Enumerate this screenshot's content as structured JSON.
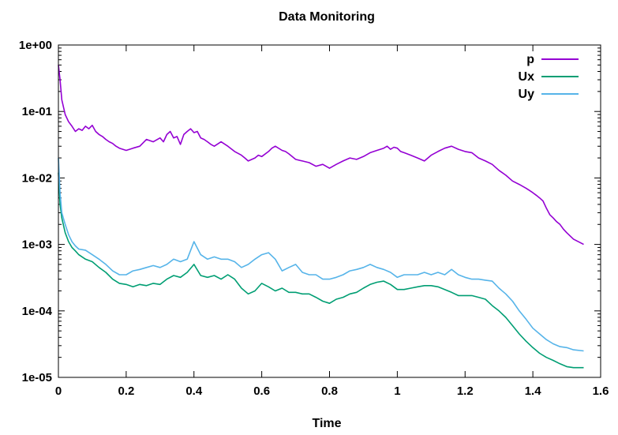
{
  "chart_data": {
    "type": "line",
    "title": "Data Monitoring",
    "xlabel": "Time",
    "ylabel": "",
    "yscale": "log",
    "xlim": [
      0,
      1.6
    ],
    "ylim": [
      1e-05,
      1
    ],
    "x_ticks": [
      0,
      0.2,
      0.4,
      0.6,
      0.8,
      1,
      1.2,
      1.4,
      1.6
    ],
    "x_tick_labels": [
      "0",
      "0.2",
      "0.4",
      "0.6",
      "0.8",
      "1",
      "1.2",
      "1.4",
      "1.6"
    ],
    "y_ticks": [
      1e-05,
      0.0001,
      0.001,
      0.01,
      0.1,
      1
    ],
    "y_tick_labels": [
      "1e-05",
      "1e-04",
      "1e-03",
      "1e-02",
      "1e-01",
      "1e+00"
    ],
    "legend_position": "top-right",
    "series": [
      {
        "name": "p",
        "color": "#9400d3",
        "x": [
          0,
          0.005,
          0.01,
          0.02,
          0.03,
          0.04,
          0.05,
          0.06,
          0.07,
          0.08,
          0.09,
          0.1,
          0.11,
          0.12,
          0.13,
          0.14,
          0.15,
          0.16,
          0.17,
          0.18,
          0.19,
          0.2,
          0.22,
          0.24,
          0.26,
          0.28,
          0.3,
          0.31,
          0.32,
          0.33,
          0.34,
          0.35,
          0.36,
          0.37,
          0.38,
          0.39,
          0.4,
          0.41,
          0.42,
          0.43,
          0.44,
          0.45,
          0.46,
          0.48,
          0.5,
          0.52,
          0.54,
          0.55,
          0.56,
          0.58,
          0.59,
          0.6,
          0.62,
          0.63,
          0.64,
          0.66,
          0.67,
          0.68,
          0.7,
          0.72,
          0.74,
          0.76,
          0.78,
          0.8,
          0.82,
          0.84,
          0.86,
          0.88,
          0.9,
          0.92,
          0.94,
          0.96,
          0.97,
          0.98,
          0.99,
          1.0,
          1.01,
          1.02,
          1.04,
          1.06,
          1.08,
          1.1,
          1.12,
          1.14,
          1.16,
          1.18,
          1.2,
          1.22,
          1.24,
          1.26,
          1.28,
          1.3,
          1.32,
          1.34,
          1.36,
          1.38,
          1.39,
          1.4,
          1.41,
          1.42,
          1.43,
          1.44,
          1.45,
          1.46,
          1.47,
          1.48,
          1.49,
          1.5,
          1.52,
          1.55
        ],
        "values": [
          0.5,
          0.3,
          0.15,
          0.09,
          0.07,
          0.06,
          0.05,
          0.055,
          0.052,
          0.06,
          0.055,
          0.062,
          0.05,
          0.045,
          0.042,
          0.038,
          0.035,
          0.033,
          0.03,
          0.028,
          0.027,
          0.026,
          0.028,
          0.03,
          0.038,
          0.035,
          0.04,
          0.035,
          0.045,
          0.05,
          0.04,
          0.042,
          0.032,
          0.045,
          0.05,
          0.055,
          0.048,
          0.05,
          0.04,
          0.038,
          0.035,
          0.032,
          0.03,
          0.035,
          0.03,
          0.025,
          0.022,
          0.02,
          0.018,
          0.02,
          0.022,
          0.021,
          0.025,
          0.028,
          0.03,
          0.026,
          0.025,
          0.023,
          0.019,
          0.018,
          0.017,
          0.015,
          0.016,
          0.014,
          0.016,
          0.018,
          0.02,
          0.019,
          0.021,
          0.024,
          0.026,
          0.028,
          0.03,
          0.027,
          0.029,
          0.028,
          0.025,
          0.024,
          0.022,
          0.02,
          0.018,
          0.022,
          0.025,
          0.028,
          0.03,
          0.027,
          0.025,
          0.024,
          0.02,
          0.018,
          0.016,
          0.013,
          0.011,
          0.009,
          0.008,
          0.007,
          0.0065,
          0.006,
          0.0055,
          0.005,
          0.0045,
          0.0035,
          0.0028,
          0.0025,
          0.0022,
          0.002,
          0.0017,
          0.0015,
          0.0012,
          0.001
        ]
      },
      {
        "name": "Ux",
        "color": "#009e73",
        "x": [
          0,
          0.005,
          0.01,
          0.02,
          0.03,
          0.04,
          0.05,
          0.06,
          0.08,
          0.1,
          0.12,
          0.14,
          0.16,
          0.18,
          0.2,
          0.22,
          0.24,
          0.26,
          0.28,
          0.3,
          0.32,
          0.34,
          0.36,
          0.38,
          0.4,
          0.42,
          0.44,
          0.46,
          0.48,
          0.5,
          0.52,
          0.54,
          0.56,
          0.58,
          0.6,
          0.62,
          0.64,
          0.66,
          0.68,
          0.7,
          0.72,
          0.74,
          0.76,
          0.78,
          0.8,
          0.82,
          0.84,
          0.86,
          0.88,
          0.9,
          0.92,
          0.94,
          0.96,
          0.98,
          1.0,
          1.02,
          1.04,
          1.06,
          1.08,
          1.1,
          1.12,
          1.14,
          1.16,
          1.18,
          1.2,
          1.22,
          1.24,
          1.26,
          1.28,
          1.3,
          1.32,
          1.34,
          1.36,
          1.38,
          1.4,
          1.42,
          1.44,
          1.46,
          1.48,
          1.5,
          1.52,
          1.55
        ],
        "values": [
          0.012,
          0.004,
          0.0025,
          0.0015,
          0.0011,
          0.0009,
          0.0008,
          0.0007,
          0.0006,
          0.00055,
          0.00045,
          0.00038,
          0.0003,
          0.00026,
          0.00025,
          0.00023,
          0.00025,
          0.00024,
          0.00026,
          0.00025,
          0.0003,
          0.00034,
          0.00032,
          0.00038,
          0.0005,
          0.00034,
          0.00032,
          0.00034,
          0.0003,
          0.00035,
          0.0003,
          0.00022,
          0.00018,
          0.0002,
          0.00026,
          0.00023,
          0.0002,
          0.00022,
          0.00019,
          0.00019,
          0.00018,
          0.00018,
          0.00016,
          0.00014,
          0.00013,
          0.00015,
          0.00016,
          0.00018,
          0.00019,
          0.00022,
          0.00025,
          0.00027,
          0.00028,
          0.00025,
          0.00021,
          0.00021,
          0.00022,
          0.00023,
          0.00024,
          0.00024,
          0.00023,
          0.00021,
          0.00019,
          0.00017,
          0.00017,
          0.00017,
          0.00016,
          0.00015,
          0.00012,
          0.0001,
          8e-05,
          6e-05,
          4.5e-05,
          3.5e-05,
          2.8e-05,
          2.3e-05,
          2e-05,
          1.8e-05,
          1.6e-05,
          1.45e-05,
          1.4e-05,
          1.4e-05
        ]
      },
      {
        "name": "Uy",
        "color": "#56b4e9",
        "x": [
          0,
          0.005,
          0.01,
          0.02,
          0.03,
          0.04,
          0.05,
          0.06,
          0.08,
          0.1,
          0.12,
          0.14,
          0.16,
          0.18,
          0.2,
          0.22,
          0.24,
          0.26,
          0.28,
          0.3,
          0.32,
          0.34,
          0.36,
          0.38,
          0.4,
          0.42,
          0.44,
          0.46,
          0.48,
          0.5,
          0.52,
          0.54,
          0.56,
          0.58,
          0.6,
          0.62,
          0.64,
          0.66,
          0.68,
          0.7,
          0.72,
          0.74,
          0.76,
          0.78,
          0.8,
          0.82,
          0.84,
          0.86,
          0.88,
          0.9,
          0.92,
          0.94,
          0.96,
          0.98,
          1.0,
          1.02,
          1.04,
          1.06,
          1.08,
          1.1,
          1.12,
          1.14,
          1.16,
          1.18,
          1.2,
          1.22,
          1.24,
          1.26,
          1.28,
          1.3,
          1.32,
          1.34,
          1.36,
          1.38,
          1.4,
          1.42,
          1.44,
          1.46,
          1.48,
          1.5,
          1.52,
          1.55
        ],
        "values": [
          0.02,
          0.006,
          0.003,
          0.002,
          0.0014,
          0.0011,
          0.00095,
          0.00085,
          0.00082,
          0.0007,
          0.0006,
          0.0005,
          0.0004,
          0.00035,
          0.00035,
          0.0004,
          0.00042,
          0.00045,
          0.00048,
          0.00045,
          0.0005,
          0.0006,
          0.00055,
          0.0006,
          0.0011,
          0.0007,
          0.0006,
          0.00065,
          0.0006,
          0.0006,
          0.00055,
          0.00045,
          0.0005,
          0.0006,
          0.0007,
          0.00075,
          0.0006,
          0.0004,
          0.00045,
          0.0005,
          0.00038,
          0.00035,
          0.00035,
          0.0003,
          0.0003,
          0.00032,
          0.00035,
          0.0004,
          0.00042,
          0.00045,
          0.0005,
          0.00045,
          0.00042,
          0.00038,
          0.00032,
          0.00035,
          0.00035,
          0.00035,
          0.00038,
          0.00035,
          0.00038,
          0.00035,
          0.00042,
          0.00035,
          0.00032,
          0.0003,
          0.0003,
          0.00029,
          0.00028,
          0.00022,
          0.00018,
          0.00014,
          0.0001,
          7.5e-05,
          5.5e-05,
          4.5e-05,
          3.7e-05,
          3.2e-05,
          2.9e-05,
          2.8e-05,
          2.6e-05,
          2.5e-05
        ]
      }
    ]
  }
}
